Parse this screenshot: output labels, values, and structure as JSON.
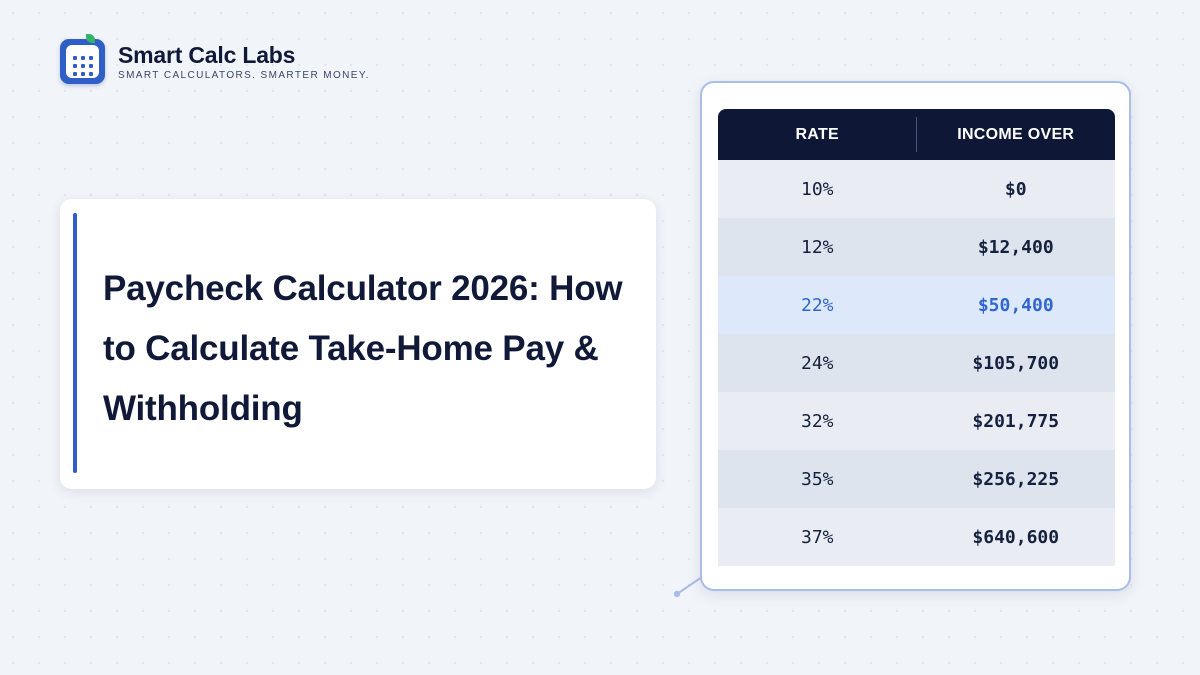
{
  "brand": {
    "name": "Smart Calc Labs",
    "tagline": "SMART CALCULATORS. SMARTER MONEY.",
    "logo_icon": "calculator-icon"
  },
  "title_card": {
    "title": "Paycheck Calculator 2026: How to Calculate Take-Home Pay & Withholding"
  },
  "table": {
    "headers": [
      "RATE",
      "INCOME OVER"
    ],
    "rows": [
      {
        "rate": "10%",
        "income": "$0"
      },
      {
        "rate": "12%",
        "income": "$12,400"
      },
      {
        "rate": "22%",
        "income": "$50,400",
        "highlighted": true
      },
      {
        "rate": "24%",
        "income": "$105,700"
      },
      {
        "rate": "32%",
        "income": "$201,775"
      },
      {
        "rate": "35%",
        "income": "$256,225"
      },
      {
        "rate": "37%",
        "income": "$640,600"
      }
    ]
  },
  "colors": {
    "accent": "#2f5fc6",
    "header_bg": "#0e1836",
    "highlight_text": "#2f66d0",
    "highlight_bg": "#dde9fb"
  }
}
